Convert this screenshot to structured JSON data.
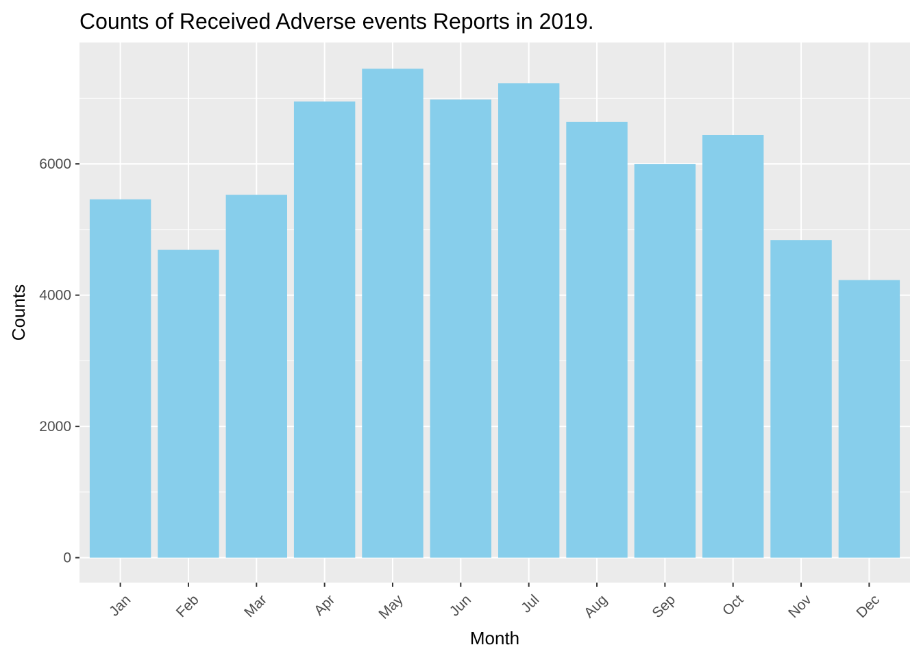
{
  "chart_data": {
    "type": "bar",
    "title": "Counts of Received Adverse events Reports in 2019.",
    "xlabel": "Month",
    "ylabel": "Counts",
    "categories": [
      "Jan",
      "Feb",
      "Mar",
      "Apr",
      "May",
      "Jun",
      "Jul",
      "Aug",
      "Sep",
      "Oct",
      "Nov",
      "Dec"
    ],
    "values": [
      5460,
      4690,
      5530,
      6950,
      7450,
      6980,
      7230,
      6640,
      6000,
      6440,
      4840,
      4230
    ],
    "ylim": [
      -380,
      7850
    ],
    "yticks": [
      0,
      2000,
      4000,
      6000
    ],
    "ytick_labels": [
      "0",
      "2000",
      "4000",
      "6000"
    ],
    "grid": true,
    "colors": {
      "bar": "#87ceeb",
      "panel_background": "#ebebeb",
      "grid": "#ffffff",
      "tick": "#333333"
    }
  }
}
